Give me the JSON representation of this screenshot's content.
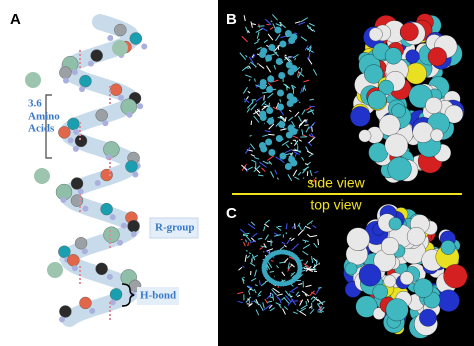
{
  "panel_a": {
    "label": "A",
    "bracket_label": [
      "3.6",
      "Amino",
      "Acids"
    ],
    "r_group_label": "R-group",
    "h_bond_label": "H-bond"
  },
  "panel_b": {
    "label": "B",
    "caption": "side view"
  },
  "panel_c": {
    "label": "C",
    "caption": "top view"
  }
}
